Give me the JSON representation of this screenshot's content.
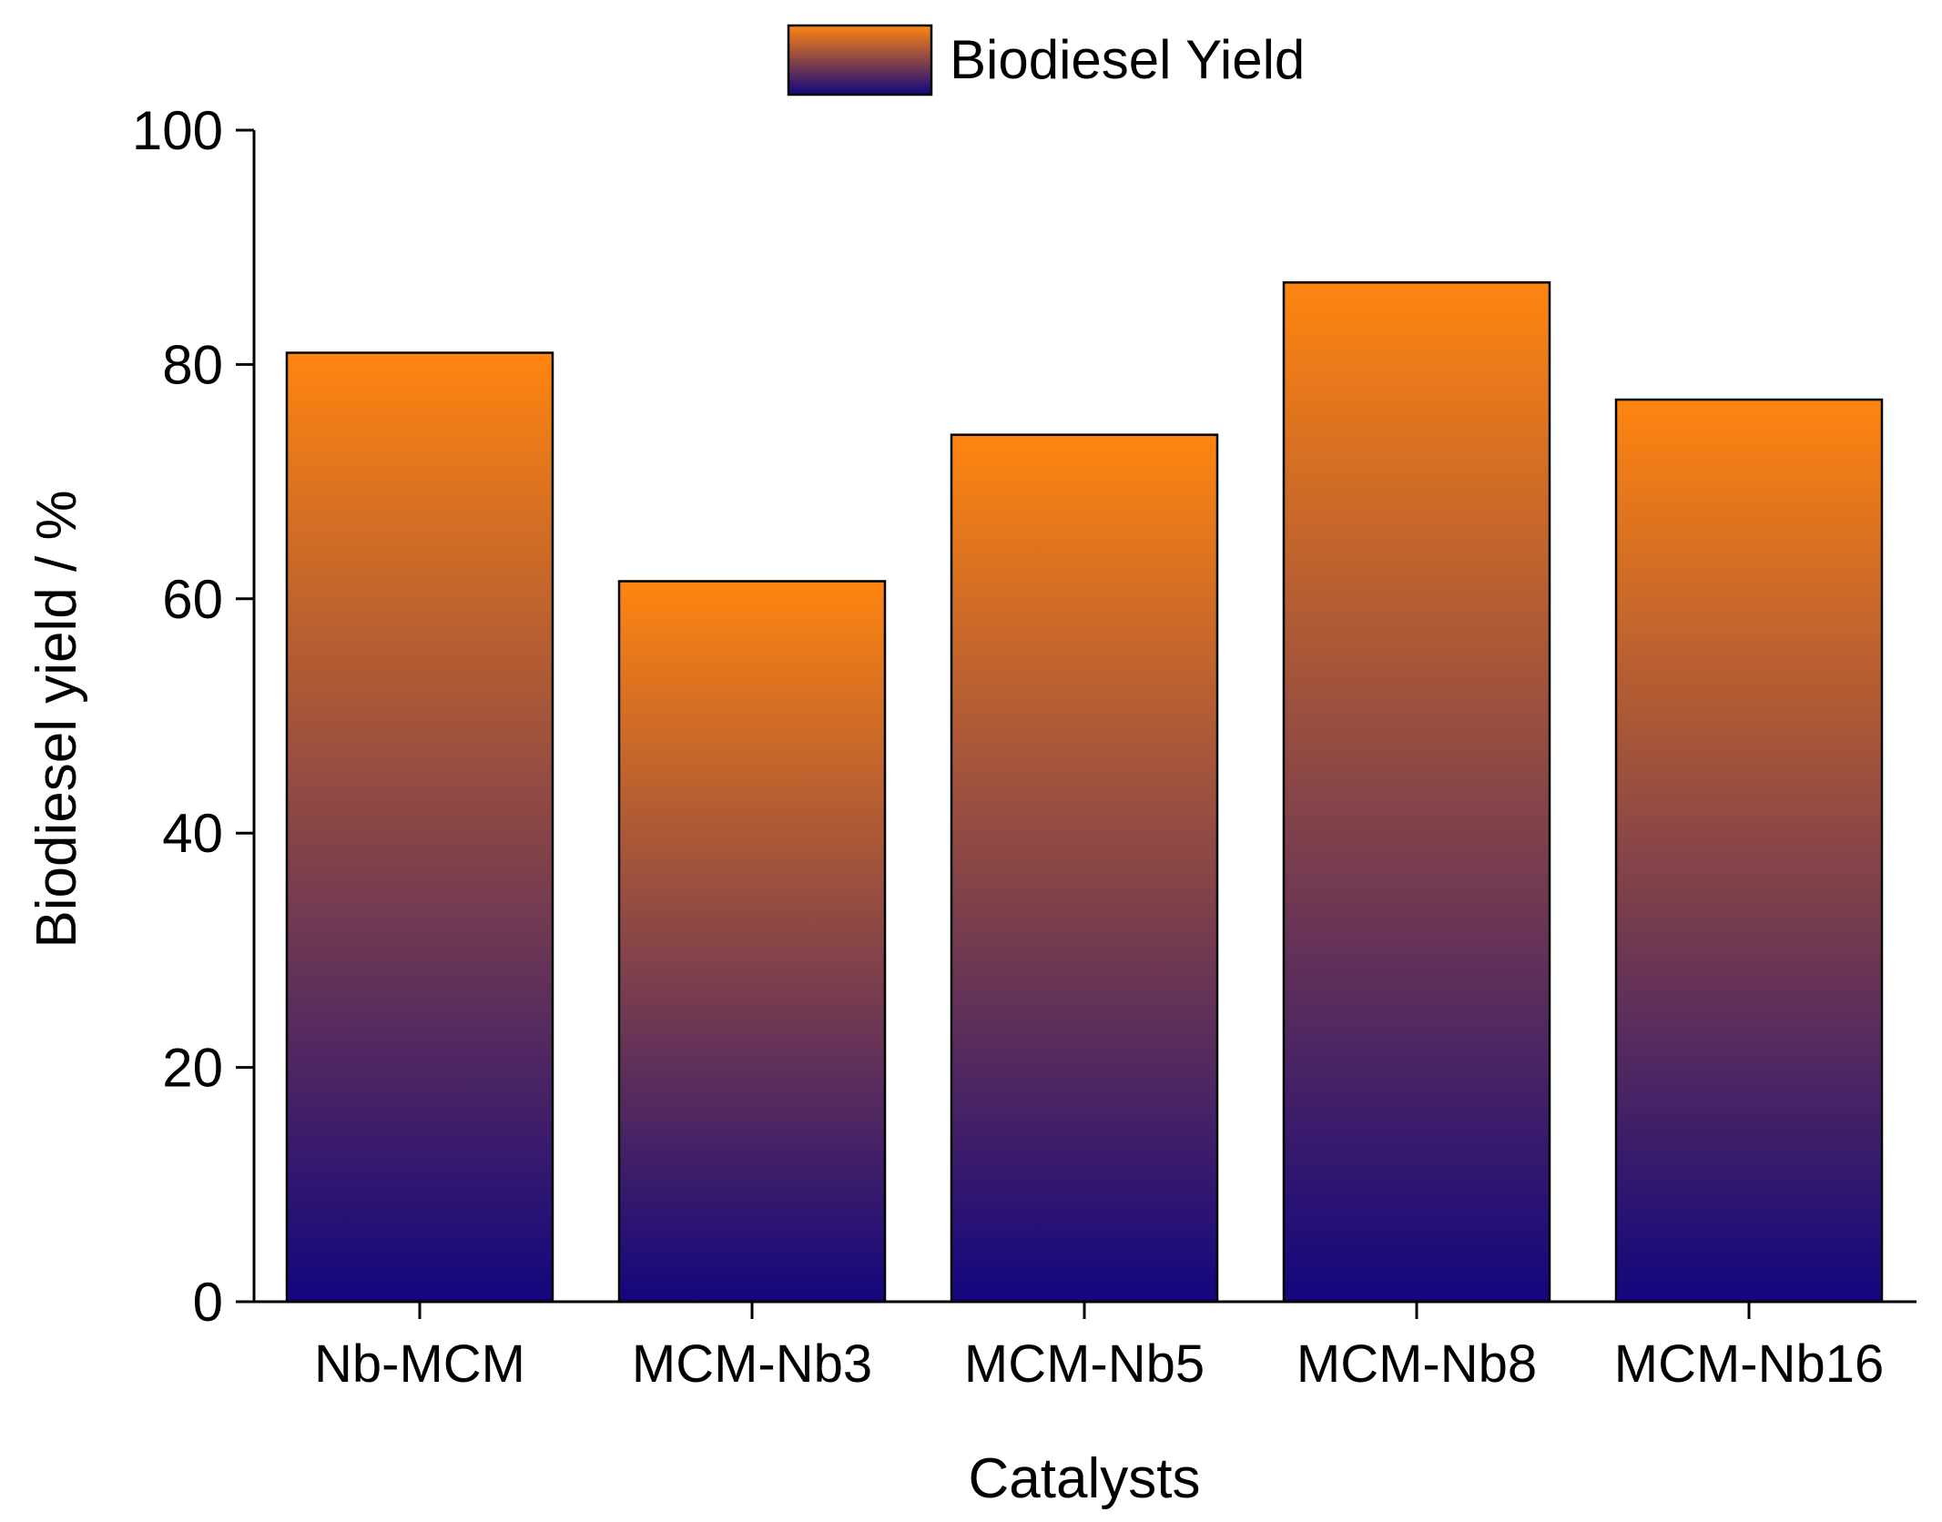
{
  "chart_data": {
    "type": "bar",
    "title": "",
    "xlabel": "Catalysts",
    "ylabel": "Biodiesel yield / %",
    "categories": [
      "Nb-MCM",
      "MCM-Nb3",
      "MCM-Nb5",
      "MCM-Nb8",
      "MCM-Nb16"
    ],
    "series": [
      {
        "name": "Biodiesel Yield",
        "values": [
          81,
          61.5,
          74,
          87,
          77
        ]
      }
    ],
    "ylim": [
      0,
      100
    ],
    "yticks": [
      "0",
      "20",
      "40",
      "60",
      "80",
      "100"
    ],
    "grid": false,
    "legend_position": "top-center"
  },
  "colors": {
    "bar_top": "#ff8510",
    "bar_bottom": "#12067e",
    "outline": "#000000"
  }
}
